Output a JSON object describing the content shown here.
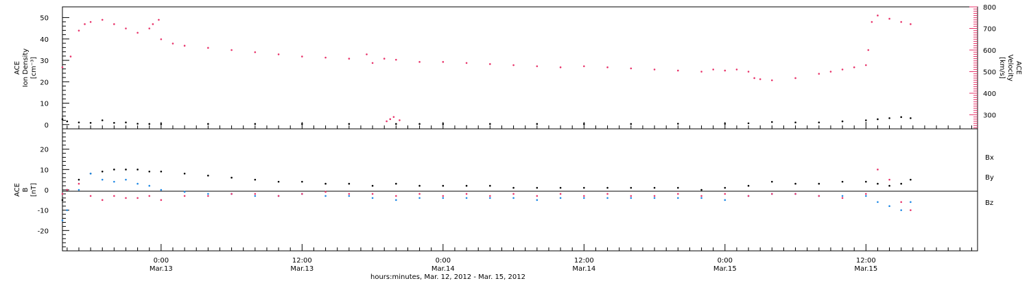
{
  "figure": {
    "xaxis_title": "hours:minutes, Mar. 12, 2012 - Mar. 15, 2012",
    "xticks": [
      {
        "t": 18,
        "line1": "0:00",
        "line2": "Mar.13"
      },
      {
        "t": 30,
        "line1": "12:00",
        "line2": "Mar.13"
      },
      {
        "t": 42,
        "line1": "0:00",
        "line2": "Mar.14"
      },
      {
        "t": 54,
        "line1": "12:00",
        "line2": "Mar.14"
      },
      {
        "t": 66,
        "line1": "0:00",
        "line2": "Mar.15"
      },
      {
        "t": 78,
        "line1": "12:00",
        "line2": "Mar.15"
      }
    ]
  },
  "chart_data": [
    {
      "type": "scatter",
      "panel": "top",
      "xlim_hours": [
        9.6,
        87.5
      ],
      "ylabel_left": [
        "ACE",
        "Ion Density",
        "[cm⁻³]"
      ],
      "ylabel_right": [
        "ACE",
        "Velocity",
        "[km/s]"
      ],
      "ylim_left": [
        -2,
        55
      ],
      "ylim_right": [
        235,
        800
      ],
      "yticks_left": [
        0,
        10,
        20,
        30,
        40,
        50
      ],
      "yticks_right": [
        300,
        400,
        500,
        600,
        700,
        800
      ],
      "series": [
        {
          "axis": "left",
          "color": "#000000",
          "x": [
            9.6,
            10,
            11,
            12,
            13,
            14,
            15,
            16,
            17,
            18,
            22,
            26,
            30,
            34,
            38,
            40,
            42,
            46,
            50,
            54,
            58,
            62,
            66,
            68,
            70,
            72,
            74,
            76,
            78,
            79,
            80,
            81,
            81.8
          ],
          "y": [
            2.5,
            1.5,
            1.0,
            0.8,
            2.0,
            0.8,
            1.0,
            0.4,
            0.3,
            0.3,
            0.3,
            0.3,
            0.3,
            0.3,
            0.3,
            0.3,
            0.3,
            0.3,
            0.3,
            0.3,
            0.3,
            0.4,
            0.4,
            0.6,
            1.2,
            1.0,
            1.0,
            1.5,
            2.0,
            2.5,
            3.0,
            3.5,
            3.0
          ]
        },
        {
          "axis": "right",
          "color": "#e8336a",
          "x": [
            9.6,
            10.3,
            11,
            11.5,
            12,
            13,
            14,
            15,
            16,
            17,
            17.3,
            17.8,
            18,
            19,
            20,
            22,
            24,
            26,
            28,
            30,
            32,
            34,
            35.5,
            36,
            37,
            38,
            40,
            42,
            44,
            46,
            48,
            50,
            52,
            54,
            56,
            58,
            60,
            62,
            64,
            65,
            66,
            67,
            68,
            68.5,
            69,
            70,
            72,
            74,
            75,
            76,
            77,
            78,
            78.2,
            78.5,
            79,
            80,
            81,
            81.8
          ],
          "y": [
            520,
            570,
            690,
            720,
            730,
            740,
            720,
            700,
            680,
            700,
            720,
            740,
            650,
            630,
            620,
            610,
            600,
            590,
            580,
            570,
            565,
            560,
            580,
            540,
            560,
            555,
            545,
            545,
            540,
            535,
            530,
            525,
            520,
            525,
            520,
            515,
            510,
            505,
            500,
            510,
            505,
            510,
            500,
            470,
            465,
            460,
            470,
            490,
            500,
            510,
            520,
            530,
            600,
            730,
            760,
            745,
            730,
            720
          ]
        },
        {
          "axis": "right",
          "color": "#e8336a",
          "x": [
            37.2,
            37.5,
            37.8,
            38.3
          ],
          "y": [
            270,
            280,
            290,
            275
          ]
        }
      ]
    },
    {
      "type": "scatter",
      "panel": "bottom",
      "xlim_hours": [
        9.6,
        87.5
      ],
      "ylabel_left": [
        "ACE",
        "B",
        "[nT]"
      ],
      "ylim": [
        -30,
        30
      ],
      "yticks": [
        -20,
        -10,
        0,
        10,
        20
      ],
      "legend": [
        "Bx",
        "By",
        "Bz"
      ],
      "series": [
        {
          "name": "Bx",
          "color": "#000000",
          "x": [
            9.6,
            10,
            11,
            12,
            13,
            14,
            15,
            16,
            17,
            18,
            20,
            22,
            24,
            26,
            28,
            30,
            32,
            34,
            36,
            38,
            40,
            42,
            44,
            46,
            48,
            50,
            52,
            54,
            56,
            58,
            60,
            62,
            64,
            66,
            68,
            70,
            72,
            74,
            76,
            78,
            79,
            80,
            81,
            81.8
          ],
          "y": [
            -5,
            0,
            5,
            8,
            9,
            10,
            10,
            10,
            9,
            9,
            8,
            7,
            6,
            5,
            4,
            4,
            3,
            3,
            2,
            3,
            2,
            2,
            2,
            2,
            1,
            1,
            1,
            1,
            1,
            1,
            1,
            1,
            0,
            1,
            2,
            4,
            3,
            3,
            4,
            4,
            3,
            2,
            3,
            5
          ]
        },
        {
          "name": "By",
          "color": "#1e88e5",
          "x": [
            9.6,
            10,
            11,
            12,
            13,
            14,
            15,
            16,
            17,
            18,
            20,
            22,
            24,
            26,
            28,
            30,
            32,
            34,
            36,
            38,
            40,
            42,
            44,
            46,
            48,
            50,
            52,
            54,
            56,
            58,
            60,
            62,
            64,
            66,
            68,
            70,
            72,
            74,
            76,
            78,
            79,
            80,
            81,
            81.8
          ],
          "y": [
            -15,
            -10,
            0,
            8,
            5,
            4,
            5,
            3,
            2,
            0,
            -1,
            -2,
            -2,
            -3,
            -3,
            -2,
            -3,
            -3,
            -4,
            -5,
            -4,
            -4,
            -4,
            -4,
            -4,
            -5,
            -4,
            -4,
            -4,
            -4,
            -4,
            -4,
            -4,
            -5,
            -3,
            -2,
            -2,
            -3,
            -3,
            -3,
            -6,
            -8,
            -10,
            -6
          ]
        },
        {
          "name": "Bz",
          "color": "#e8336a",
          "x": [
            9.6,
            10,
            11,
            12,
            13,
            14,
            15,
            16,
            17,
            18,
            20,
            22,
            24,
            26,
            28,
            30,
            32,
            34,
            36,
            38,
            40,
            42,
            44,
            46,
            48,
            50,
            52,
            54,
            56,
            58,
            60,
            62,
            64,
            66,
            68,
            70,
            72,
            74,
            76,
            78,
            79,
            80,
            81,
            81.8
          ],
          "y": [
            -2,
            0,
            3,
            -3,
            -5,
            -3,
            -4,
            -4,
            -3,
            -5,
            -3,
            -3,
            -2,
            -2,
            -3,
            -2,
            -1,
            -2,
            -2,
            -3,
            -2,
            -3,
            -2,
            -3,
            -2,
            -3,
            -2,
            -3,
            -2,
            -3,
            -3,
            -2,
            -3,
            -2,
            -3,
            -2,
            -2,
            -3,
            -4,
            -2,
            10,
            5,
            -6,
            -10
          ]
        }
      ]
    }
  ]
}
